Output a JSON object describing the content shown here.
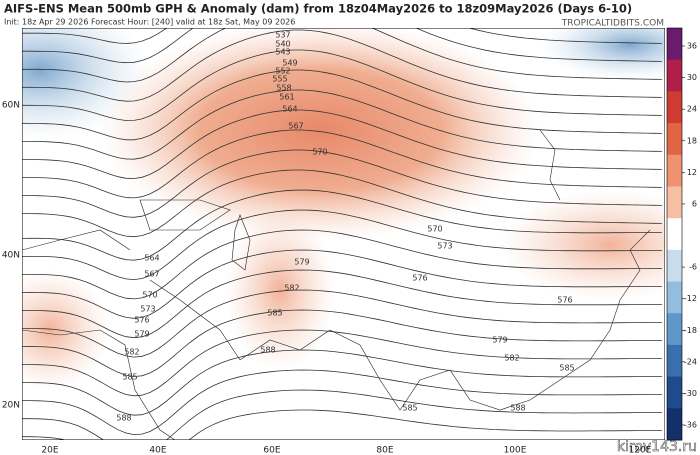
{
  "header": {
    "title": "AIFS-ENS Mean 500mb GPH & Anomaly (dam) from 18z04May2026 to 18z09May2026 (Days 6-10)",
    "info": "Init: 18z Apr 29 2026   Forecast Hour: [240]   valid at 18z Sat, May 09 2026",
    "brand": "TROPICALTIDBITS.COM"
  },
  "colorbar": {
    "ticks": [
      36,
      30,
      24,
      18,
      12,
      6,
      -6,
      -12,
      -18,
      -24,
      -30,
      -36
    ]
  },
  "lat_labels": [
    "60N",
    "40N",
    "20N"
  ],
  "lon_labels": [
    "20E",
    "40E",
    "60E",
    "80E",
    "100E",
    "120E"
  ],
  "contour_labels": [
    "537",
    "540",
    "543",
    "549",
    "552",
    "555",
    "558",
    "561",
    "564",
    "567",
    "570",
    "570",
    "573",
    "576",
    "576",
    "579",
    "582",
    "585",
    "585",
    "588",
    "564",
    "567",
    "570",
    "573",
    "576",
    "579",
    "582",
    "585",
    "588",
    "588",
    "585",
    "582",
    "579"
  ],
  "watermark": "kirov143.ru"
}
